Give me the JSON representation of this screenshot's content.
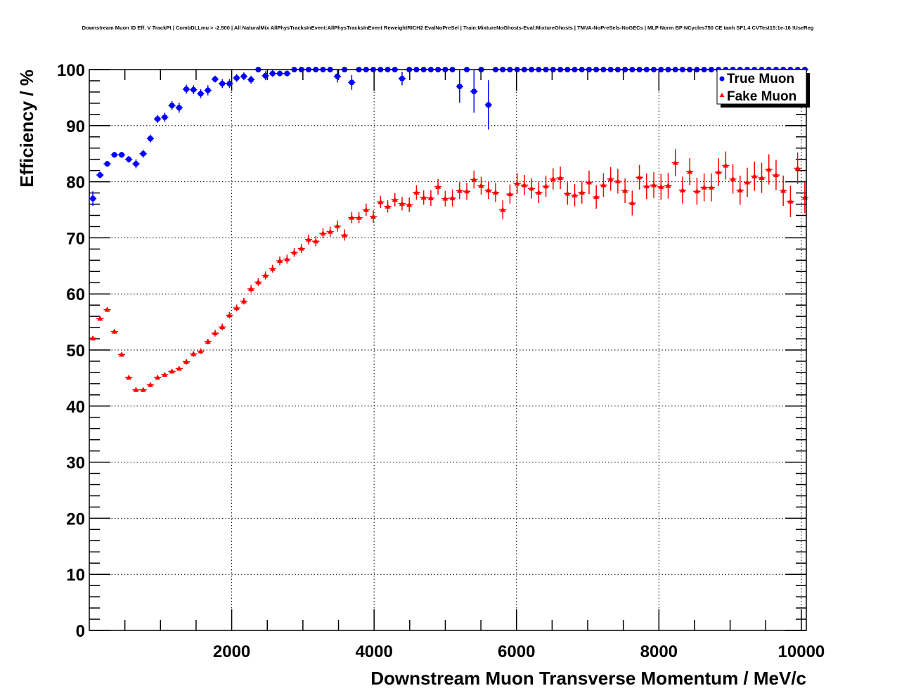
{
  "chart_data": {
    "type": "scatter",
    "title": "Downstream Muon ID Eff. V TrackPt | CombDLLmu > -2.500 | All NaturalMix AllPhysTracksInEvent:AllPhysTracksInEvent ReweightRICH2 EvalNoPreSel | Train:MixtureNoGhosts-Eval:MixtureGhosts | TMVA-NoPreSels-NoGECs | MLP Norm BP NCycles750 CE tanh SF1.4 CVTest15:1e-16 !UseReg",
    "xlabel": "Downstream Muon Transverse Momentum / MeV/c",
    "ylabel": "Efficiency / %",
    "xlim": [
      0,
      10070
    ],
    "ylim": [
      0,
      100
    ],
    "bin_start": 50,
    "bin_width": 101,
    "x_ticks": [
      2000,
      4000,
      6000,
      8000,
      10000
    ],
    "x_tick_labels": [
      "2000",
      "4000",
      "6000",
      "8000",
      "10000"
    ],
    "y_ticks": [
      0,
      10,
      20,
      30,
      40,
      50,
      60,
      70,
      80,
      90,
      100
    ],
    "y_tick_labels": [
      "0",
      "10",
      "20",
      "30",
      "40",
      "50",
      "60",
      "70",
      "80",
      "90",
      "100"
    ],
    "grid": true,
    "legend_position": "top-right",
    "series": [
      {
        "name": "True Muon",
        "color": "#0000ff",
        "marker": "circle",
        "values": [
          77.0,
          81.2,
          83.2,
          84.8,
          84.8,
          84.0,
          83.2,
          85.0,
          87.7,
          91.2,
          91.5,
          93.6,
          93.2,
          96.5,
          96.4,
          95.7,
          96.3,
          98.3,
          97.5,
          97.5,
          98.5,
          98.8,
          98.2,
          100,
          98.9,
          99.3,
          99.3,
          99.3,
          100,
          100,
          100,
          100,
          100,
          100,
          98.8,
          100,
          97.7,
          100,
          100,
          100,
          100,
          100,
          100,
          98.4,
          100,
          100,
          100,
          100,
          100,
          100,
          100,
          97.0,
          100,
          96.1,
          100,
          93.7,
          100,
          100,
          100,
          100,
          100,
          100,
          100,
          100,
          100,
          100,
          100,
          100,
          100,
          100,
          100,
          100,
          100,
          100,
          100,
          100,
          100,
          100,
          100,
          100,
          100,
          100,
          100,
          100,
          100,
          100,
          100,
          100,
          100,
          100,
          100,
          100,
          100,
          100,
          100,
          100,
          100,
          100,
          100,
          100
        ],
        "errors": [
          1.3,
          0.6,
          0.5,
          0.5,
          0.5,
          0.6,
          0.8,
          0.7,
          0.7,
          0.7,
          0.8,
          0.8,
          0.9,
          0.8,
          0.8,
          0.8,
          0.9,
          0.6,
          0.8,
          0.8,
          0.7,
          0.7,
          0.7,
          0,
          0.8,
          0.6,
          0.5,
          0.5,
          0,
          0,
          0,
          0,
          0,
          0,
          1.1,
          0,
          1.3,
          0,
          0,
          0,
          0,
          0,
          0,
          1.2,
          0,
          0,
          0,
          0,
          0,
          0,
          0,
          2.9,
          0,
          3.8,
          0,
          4.4,
          0,
          0,
          0,
          0,
          0,
          0,
          0,
          0,
          0,
          0,
          0,
          0,
          0,
          0,
          0,
          0,
          0,
          0,
          0,
          0,
          0,
          0,
          0,
          0,
          0,
          0,
          0,
          0,
          0,
          0,
          0,
          0,
          0,
          0,
          0,
          0,
          0,
          0,
          0,
          0,
          0,
          0,
          0,
          0
        ]
      },
      {
        "name": "Fake Muon",
        "color": "#ff0000",
        "marker": "triangle",
        "values": [
          52.1,
          55.6,
          57.2,
          53.3,
          49.2,
          45.1,
          42.9,
          42.9,
          43.8,
          45.1,
          45.6,
          46.2,
          46.7,
          47.9,
          49.3,
          49.8,
          51.5,
          53.0,
          54.1,
          56.2,
          57.5,
          58.7,
          60.9,
          62.1,
          63.3,
          64.5,
          65.9,
          66.2,
          67.4,
          68.1,
          69.7,
          69.4,
          70.8,
          71.1,
          72.1,
          70.5,
          73.6,
          73.6,
          75.0,
          73.8,
          76.4,
          75.6,
          76.8,
          76.1,
          75.9,
          78.1,
          77.2,
          77.1,
          79.1,
          77.0,
          77.1,
          78.4,
          78.3,
          80.4,
          79.3,
          78.5,
          78.1,
          75.0,
          77.8,
          79.7,
          79.4,
          78.8,
          78.1,
          79.2,
          80.5,
          80.7,
          77.9,
          77.6,
          78.1,
          79.9,
          77.3,
          79.4,
          80.5,
          80.1,
          78.4,
          76.2,
          80.8,
          79.2,
          79.4,
          79.1,
          79.3,
          83.4,
          78.5,
          81.8,
          78.3,
          79.0,
          79.0,
          81.7,
          82.9,
          80.5,
          78.5,
          79.9,
          81.0,
          80.7,
          82.2,
          81.2,
          78.4,
          76.5,
          82.4,
          77.2
        ],
        "errors": [
          0.4,
          0.4,
          0.4,
          0.4,
          0.4,
          0.4,
          0.4,
          0.4,
          0.4,
          0.4,
          0.4,
          0.4,
          0.4,
          0.5,
          0.5,
          0.5,
          0.5,
          0.6,
          0.6,
          0.6,
          0.6,
          0.6,
          0.7,
          0.7,
          0.7,
          0.7,
          0.8,
          0.8,
          0.8,
          0.8,
          0.9,
          0.9,
          0.9,
          0.9,
          1.0,
          1.0,
          1.0,
          1.0,
          1.1,
          1.1,
          1.1,
          1.1,
          1.2,
          1.2,
          1.3,
          1.3,
          1.3,
          1.4,
          1.4,
          1.4,
          1.5,
          1.5,
          1.5,
          1.6,
          1.6,
          1.6,
          1.7,
          1.7,
          1.7,
          1.8,
          1.8,
          1.8,
          1.9,
          1.9,
          1.9,
          2.0,
          2.0,
          2.0,
          2.0,
          2.1,
          2.1,
          2.1,
          2.1,
          2.2,
          2.2,
          2.2,
          2.2,
          2.3,
          2.3,
          2.3,
          2.3,
          2.4,
          2.4,
          2.4,
          2.4,
          2.5,
          2.5,
          2.5,
          2.5,
          2.6,
          2.6,
          2.6,
          2.6,
          2.7,
          2.7,
          2.7,
          2.7,
          2.8,
          2.8,
          2.8
        ]
      }
    ]
  }
}
